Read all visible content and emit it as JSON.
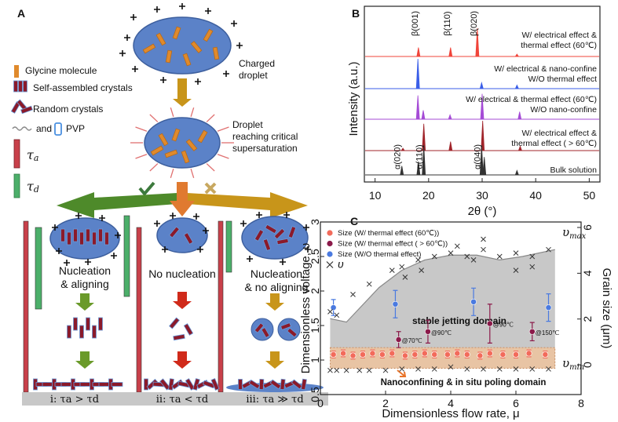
{
  "diagram": {
    "panel_label": "A",
    "charged_droplet": "Charged\ndroplet",
    "legend": [
      "Glycine molecule",
      "Self-assembled crystals",
      "Random crystals"
    ],
    "pvp_and": "and",
    "pvp": "PVP",
    "tau_a": {
      "base": "τ",
      "sub": "a"
    },
    "tau_d": {
      "base": "τ",
      "sub": "d"
    },
    "critical": "Droplet\nreaching critical\nsupersaturation",
    "outcomes": [
      "Nucleation\n& aligning",
      "No nucleation",
      "Nucleation\n& no aligning"
    ],
    "conditions": [
      "i: τa > τd",
      "ii: τa < τd",
      "iii: τa ≫ τd"
    ]
  },
  "chart_data": [
    {
      "type": "spectrum",
      "panel_label": "B",
      "xlabel": "2θ (°)",
      "ylabel": "Intensity (a.u.)",
      "xlim": [
        8,
        52
      ],
      "xticks": [
        10,
        20,
        30,
        40,
        50
      ],
      "series": [
        {
          "name": "W/ electrical effect &\nthermal effect (60℃)",
          "color": "#f0443a",
          "x": [
            18.1,
            24.1,
            29.1,
            36.5
          ],
          "values": [
            0.3,
            0.3,
            0.95,
            0.08
          ]
        },
        {
          "name": "W/ electrical & nano-confine\nW/O thermal effect",
          "color": "#3a5ee8",
          "x": [
            18.0,
            29.9,
            36.5
          ],
          "values": [
            1.0,
            0.2,
            0.12
          ]
        },
        {
          "name": "W/ electrical & thermal effect (60℃)\nW/O nano-confine",
          "color": "#a54bd6",
          "x": [
            18.0,
            19.0,
            24.0,
            30.0,
            37.0
          ],
          "values": [
            0.8,
            0.3,
            0.15,
            0.85,
            0.25
          ]
        },
        {
          "name": "W/ electrical effect &\nthermal effect ( > 60℃)",
          "color": "#a0242a",
          "x": [
            15.2,
            19.1,
            24.1,
            30.1,
            37.1
          ],
          "values": [
            0.08,
            0.9,
            0.3,
            1.0,
            0.15
          ]
        },
        {
          "name": "Bulk solution",
          "color": "#333333",
          "x": [
            15.0,
            18.1,
            19.1,
            29.9,
            30.4,
            36.5
          ],
          "values": [
            0.3,
            0.45,
            1.0,
            1.0,
            0.6,
            0.15
          ]
        }
      ],
      "beta_labels": {
        "color": "#e8742a",
        "items": [
          {
            "text": "β(001)",
            "x": 18.1
          },
          {
            "text": "β(110)",
            "x": 24.1
          },
          {
            "text": "β(020)",
            "x": 29.1
          }
        ]
      },
      "alpha_labels": {
        "color": "#222222",
        "items": [
          {
            "text": "α(020)",
            "x": 15.0
          },
          {
            "text": "α(110)",
            "x": 19.1
          },
          {
            "text": "α(040)",
            "x": 29.9
          }
        ]
      }
    },
    {
      "type": "scatter",
      "panel_label": "C",
      "xlabel": "Dimensionless flow rate, μ",
      "ylabel": "Dimensionless voltage, υ",
      "y2label": "Grain size (μm)",
      "xlim": [
        0,
        8
      ],
      "xticks": [
        0,
        2,
        4,
        6,
        8
      ],
      "ylim": [
        0.5,
        3
      ],
      "yticks": [
        0.5,
        1,
        1.5,
        2,
        2.5,
        3
      ],
      "y2lim": [
        -1.3,
        6.24
      ],
      "y2ticks": [
        0,
        2,
        4,
        6
      ],
      "stable_domain": {
        "label": "stable jetting domain",
        "color": "#c8c8c8",
        "x": [
          0.3,
          0.8,
          1.2,
          1.8,
          2.5,
          3.2,
          4.0,
          4.8,
          5.5,
          6.2,
          7.2
        ],
        "upper": [
          1.6,
          1.55,
          1.75,
          2.05,
          2.3,
          2.45,
          2.52,
          2.52,
          2.45,
          2.5,
          2.6
        ],
        "lower": [
          0.88,
          0.88,
          0.88,
          0.88,
          0.88,
          0.88,
          0.88,
          0.88,
          0.88,
          0.88,
          0.88
        ],
        "upper_label": {
          "base": "υ",
          "sub": "max"
        },
        "lower_label": {
          "base": "υ",
          "sub": "min"
        }
      },
      "poling_domain": {
        "label": "Nanoconfining & in situ poling domain",
        "color": "#e8c4a4",
        "text_color": "#e8742a",
        "xlim": [
          0.3,
          7.2
        ],
        "ylim": [
          0.88,
          1.18
        ]
      },
      "series": [
        {
          "name": "Size (W/ thermal effect (60℃))",
          "color": "#f26b5b",
          "axis": "y2",
          "x": [
            0.4,
            0.7,
            1.0,
            1.3,
            1.6,
            1.9,
            2.2,
            2.6,
            2.9,
            3.2,
            3.5,
            3.9,
            4.2,
            4.5,
            4.9,
            5.2,
            5.6,
            6.0,
            6.4,
            6.9
          ],
          "values": [
            0.45,
            0.5,
            0.4,
            0.45,
            0.5,
            0.45,
            0.5,
            0.4,
            0.45,
            0.5,
            0.45,
            0.45,
            0.5,
            0.45,
            0.4,
            0.5,
            0.45,
            0.45,
            0.5,
            0.45
          ],
          "errors": [
            0.15,
            0.15,
            0.15,
            0.15,
            0.15,
            0.15,
            0.15,
            0.15,
            0.15,
            0.15,
            0.15,
            0.15,
            0.15,
            0.15,
            0.15,
            0.15,
            0.15,
            0.15,
            0.15,
            0.15
          ]
        },
        {
          "name": "Size (W/ thermal effect ( > 60℃))",
          "color": "#8b1a4a",
          "axis": "y2",
          "x": [
            2.4,
            3.3,
            5.2,
            6.5
          ],
          "values": [
            1.1,
            1.45,
            1.8,
            1.45
          ],
          "errors": [
            0.35,
            0.5,
            0.85,
            0.4
          ],
          "point_labels": [
            "@70℃",
            "@90℃",
            "@90℃",
            "@150℃"
          ]
        },
        {
          "name": "Size (W/O thermal effect)",
          "color": "#4a7ae0",
          "axis": "y2",
          "x": [
            0.4,
            2.3,
            4.7,
            7.0
          ],
          "values": [
            2.5,
            2.65,
            2.75,
            2.5
          ],
          "errors": [
            0.35,
            0.6,
            0.6,
            0.6
          ]
        },
        {
          "name": "υ",
          "marker": "x",
          "color": "#333333",
          "x": [
            0.3,
            0.5,
            1.0,
            1.5,
            2.2,
            2.5,
            3.0,
            3.5,
            4.0,
            4.5,
            5.0,
            5.5,
            6.0,
            6.5,
            7.0,
            2.6,
            3.1,
            4.7,
            6.0,
            6.5,
            5.0,
            4.2,
            0.3,
            0.5,
            0.8,
            1.2,
            1.5,
            2.0,
            2.5,
            3.0,
            3.5,
            4.0,
            4.5,
            5.0,
            5.5,
            6.0,
            6.5,
            7.0
          ],
          "values": [
            1.7,
            1.65,
            1.95,
            2.1,
            2.3,
            2.35,
            2.45,
            2.5,
            2.55,
            2.5,
            2.6,
            2.5,
            2.55,
            2.5,
            2.6,
            2.2,
            2.3,
            2.45,
            2.3,
            2.35,
            2.75,
            2.65,
            0.85,
            0.85,
            0.85,
            0.85,
            0.85,
            0.85,
            0.87,
            0.87,
            0.87,
            0.9,
            0.87,
            0.87,
            0.87,
            0.87,
            0.87,
            0.87
          ]
        }
      ]
    }
  ]
}
